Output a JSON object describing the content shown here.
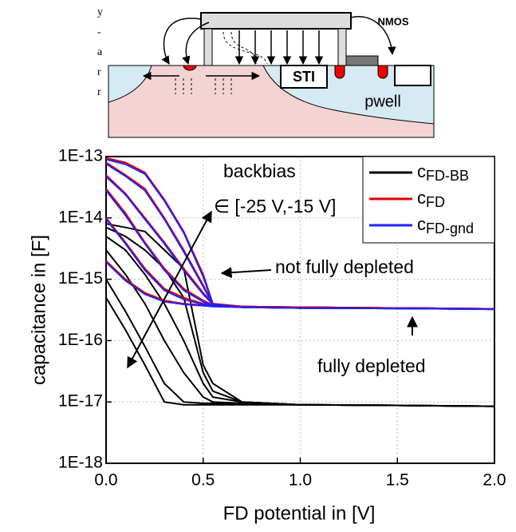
{
  "margin_text": [
    "y",
    "-",
    "a",
    "r",
    "r"
  ],
  "diagram": {
    "labels": [
      "NMOS",
      "STI",
      "pwell"
    ]
  },
  "chart_data": {
    "type": "line",
    "x_label": "FD potential in [V]",
    "y_label": "capacitance in [F]",
    "annotations": [
      "backbias",
      "∈ [-25 V,-15 V]",
      "not fully depleted",
      "fully depleted"
    ],
    "x": [
      0,
      0.1,
      0.2,
      0.3,
      0.4,
      0.5,
      0.55,
      0.7,
      1.0,
      1.5,
      2.0
    ],
    "xlim": [
      0,
      2.0
    ],
    "xticks": [
      {
        "value": 0,
        "label": "0.0"
      },
      0.5,
      {
        "value": 1,
        "label": "1.0"
      },
      1.5,
      {
        "value": 2,
        "label": "2.0"
      }
    ],
    "ylim": [
      1e-18,
      1e-13
    ],
    "yticks": [
      {
        "value": 1e-18,
        "label": "1E-18"
      },
      {
        "value": 1e-17,
        "label": "1E-17"
      },
      {
        "value": 1e-16,
        "label": "1E-16"
      },
      {
        "value": 1e-15,
        "label": "1E-15"
      },
      {
        "value": 1e-14,
        "label": "1E-14"
      },
      {
        "value": 1e-13,
        "label": "1E-13"
      }
    ],
    "y_scale": "log",
    "grid": true,
    "legend": "top-right",
    "series": [
      {
        "name": "cFD-BB",
        "color": "#000000",
        "curves": [
          [
            8e-15,
            7e-15,
            6e-15,
            3e-15,
            1.5e-15,
            4e-17,
            2e-17,
            1e-17,
            9e-18,
            8.8e-18,
            8.5e-18
          ],
          [
            7e-15,
            5e-15,
            3e-15,
            1.5e-15,
            5e-16,
            3e-17,
            1.5e-17,
            1e-17,
            9e-18,
            8.8e-18,
            8.5e-18
          ],
          [
            5e-15,
            3e-15,
            1.2e-15,
            4e-16,
            1e-16,
            2e-17,
            1.2e-17,
            1e-17,
            9e-18,
            8.8e-18,
            8.5e-18
          ],
          [
            3e-15,
            1.2e-15,
            4e-16,
            1e-16,
            3e-17,
            1.2e-17,
            1e-17,
            9.5e-18,
            9e-18,
            8.8e-18,
            8.5e-18
          ],
          [
            1e-15,
            3e-16,
            8e-17,
            2e-17,
            1e-17,
            9.5e-18,
            9.5e-18,
            9.2e-18,
            9e-18,
            8.8e-18,
            8.5e-18
          ],
          [
            5e-16,
            1.5e-16,
            4e-17,
            1e-17,
            9e-18,
            9e-18,
            9e-18,
            9e-18,
            9e-18,
            8.8e-18,
            8.5e-18
          ]
        ]
      },
      {
        "name": "cFD",
        "color": "#e00000",
        "curves": [
          [
            9.5e-14,
            8e-14,
            5.5e-14,
            2e-14,
            6e-15,
            1.2e-15,
            4e-16,
            3.6e-16,
            3.5e-16,
            3.4e-16,
            3.3e-16
          ],
          [
            8e-14,
            5e-14,
            3e-14,
            1e-14,
            3e-15,
            8e-16,
            4e-16,
            3.6e-16,
            3.5e-16,
            3.4e-16,
            3.3e-16
          ],
          [
            5e-14,
            2.5e-14,
            1e-14,
            4e-15,
            1.5e-15,
            6e-16,
            4e-16,
            3.6e-16,
            3.5e-16,
            3.4e-16,
            3.3e-16
          ],
          [
            3e-14,
            1.2e-14,
            4e-15,
            1.5e-15,
            7e-16,
            4.5e-16,
            3.8e-16,
            3.6e-16,
            3.5e-16,
            3.4e-16,
            3.3e-16
          ],
          [
            1e-14,
            4e-15,
            1.5e-15,
            7e-16,
            5e-16,
            4e-16,
            3.8e-16,
            3.6e-16,
            3.5e-16,
            3.4e-16,
            3.3e-16
          ],
          [
            2e-15,
            1e-15,
            6e-16,
            4.5e-16,
            4e-16,
            3.8e-16,
            3.7e-16,
            3.6e-16,
            3.5e-16,
            3.4e-16,
            3.3e-16
          ]
        ]
      },
      {
        "name": "cFD-gnd",
        "color": "#2020ff",
        "curves": [
          [
            9e-14,
            7.5e-14,
            5.2e-14,
            1.9e-14,
            5.7e-15,
            1.1e-15,
            3.9e-16,
            3.5e-16,
            3.4e-16,
            3.35e-16,
            3.25e-16
          ],
          [
            7.6e-14,
            4.8e-14,
            2.8e-14,
            9.5e-15,
            2.8e-15,
            7.6e-16,
            3.9e-16,
            3.5e-16,
            3.4e-16,
            3.35e-16,
            3.25e-16
          ],
          [
            4.7e-14,
            2.4e-14,
            9.5e-15,
            3.8e-15,
            1.4e-15,
            5.7e-16,
            3.9e-16,
            3.5e-16,
            3.4e-16,
            3.35e-16,
            3.25e-16
          ],
          [
            2.8e-14,
            1.1e-14,
            3.8e-15,
            1.4e-15,
            6.6e-16,
            4.3e-16,
            3.7e-16,
            3.5e-16,
            3.4e-16,
            3.35e-16,
            3.25e-16
          ],
          [
            9.5e-15,
            3.8e-15,
            1.4e-15,
            6.6e-16,
            4.7e-16,
            3.9e-16,
            3.7e-16,
            3.5e-16,
            3.4e-16,
            3.35e-16,
            3.25e-16
          ],
          [
            1.9e-15,
            9.5e-16,
            5.7e-16,
            4.3e-16,
            3.9e-16,
            3.7e-16,
            3.6e-16,
            3.5e-16,
            3.4e-16,
            3.35e-16,
            3.25e-16
          ]
        ]
      }
    ]
  }
}
